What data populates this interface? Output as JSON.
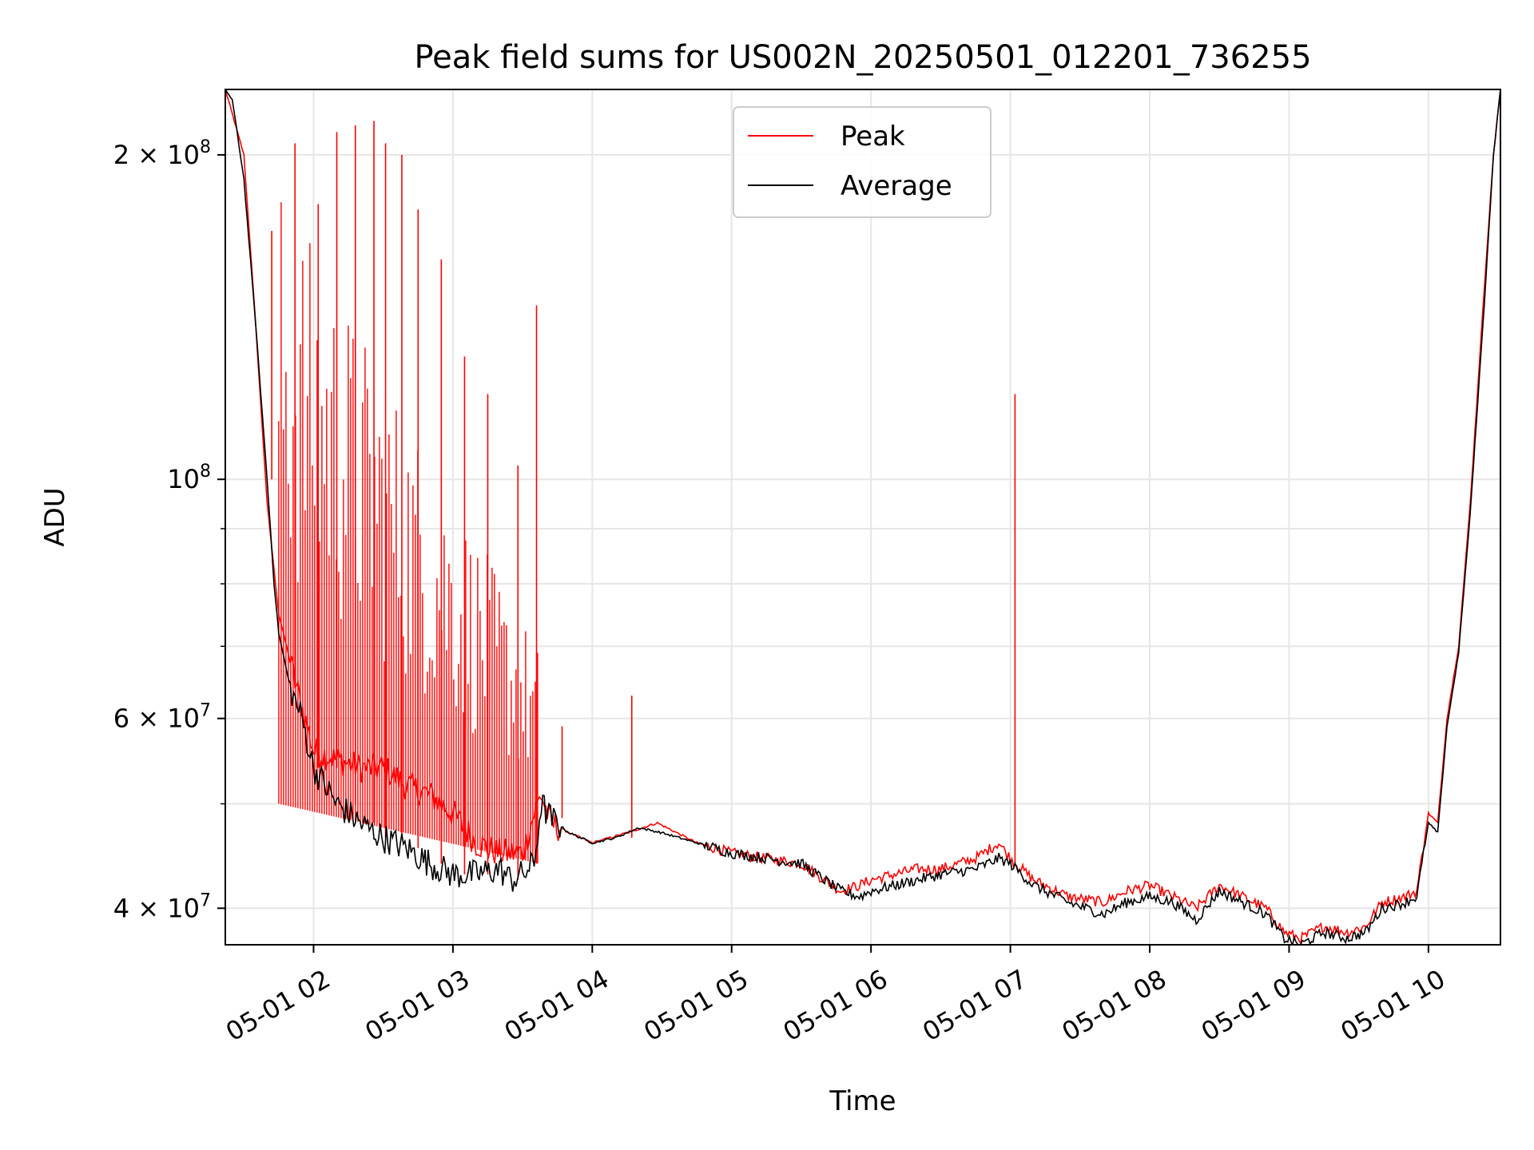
{
  "chart_data": {
    "type": "line",
    "title": "Peak field sums for US002N_20250501_012201_736255",
    "xlabel": "Time",
    "ylabel": "ADU",
    "yscale": "log",
    "ylim": [
      37000000,
      230000000
    ],
    "xlim": [
      "2025-05-01 01:22",
      "2025-05-01 10:31"
    ],
    "grid": true,
    "legend_position": "top-center",
    "x_tick_labels": [
      "05-01 02",
      "05-01 03",
      "05-01 04",
      "05-01 05",
      "05-01 06",
      "05-01 07",
      "05-01 08",
      "05-01 09",
      "05-01 10"
    ],
    "x_tick_times": [
      "2025-05-01 02:00",
      "2025-05-01 03:00",
      "2025-05-01 04:00",
      "2025-05-01 05:00",
      "2025-05-01 06:00",
      "2025-05-01 07:00",
      "2025-05-01 08:00",
      "2025-05-01 09:00",
      "2025-05-01 10:00"
    ],
    "y_major_ticks": [
      {
        "value": 40000000,
        "mantissa": "4",
        "exponent": "7"
      },
      {
        "value": 60000000,
        "mantissa": "6",
        "exponent": "7"
      },
      {
        "value": 100000000,
        "mantissa": "",
        "exponent": "8"
      },
      {
        "value": 200000000,
        "mantissa": "2",
        "exponent": "8"
      }
    ],
    "y_minor_ticks": [
      50000000,
      70000000,
      80000000,
      90000000,
      300000000
    ],
    "series": [
      {
        "name": "Peak",
        "color": "#ff0000",
        "x": [
          "2025-05-01 01:22",
          "2025-05-01 01:30",
          "2025-05-01 01:35",
          "2025-05-01 01:40",
          "2025-05-01 01:45",
          "2025-05-01 01:52",
          "2025-05-01 02:00",
          "2025-05-01 02:10",
          "2025-05-01 02:20",
          "2025-05-01 02:30",
          "2025-05-01 02:40",
          "2025-05-01 02:50",
          "2025-05-01 03:00",
          "2025-05-01 03:10",
          "2025-05-01 03:20",
          "2025-05-01 03:30",
          "2025-05-01 03:35",
          "2025-05-01 03:38",
          "2025-05-01 03:42",
          "2025-05-01 03:50",
          "2025-05-01 04:00",
          "2025-05-01 04:15",
          "2025-05-01 04:28",
          "2025-05-01 04:45",
          "2025-05-01 05:00",
          "2025-05-01 05:15",
          "2025-05-01 05:30",
          "2025-05-01 05:40",
          "2025-05-01 05:47",
          "2025-05-01 05:55",
          "2025-05-01 06:00",
          "2025-05-01 06:10",
          "2025-05-01 06:20",
          "2025-05-01 06:30",
          "2025-05-01 06:45",
          "2025-05-01 06:55",
          "2025-05-01 07:00",
          "2025-05-01 07:10",
          "2025-05-01 07:25",
          "2025-05-01 07:40",
          "2025-05-01 07:50",
          "2025-05-01 08:00",
          "2025-05-01 08:10",
          "2025-05-01 08:20",
          "2025-05-01 08:30",
          "2025-05-01 08:40",
          "2025-05-01 08:50",
          "2025-05-01 08:58",
          "2025-05-01 09:05",
          "2025-05-01 09:15",
          "2025-05-01 09:25",
          "2025-05-01 09:33",
          "2025-05-01 09:40",
          "2025-05-01 09:50",
          "2025-05-01 09:55",
          "2025-05-01 10:00",
          "2025-05-01 10:04",
          "2025-05-01 10:08",
          "2025-05-01 10:13",
          "2025-05-01 10:18",
          "2025-05-01 10:24",
          "2025-05-01 10:28",
          "2025-05-01 10:31"
        ],
        "values": [
          230000000,
          200000000,
          140000000,
          95000000,
          75000000,
          65000000,
          56000000,
          55000000,
          54000000,
          54000000,
          52000000,
          51000000,
          49000000,
          46000000,
          45000000,
          45000000,
          49000000,
          51000000,
          48000000,
          47000000,
          46000000,
          47000000,
          48000000,
          46000000,
          45000000,
          44500000,
          44000000,
          42500000,
          41500000,
          42000000,
          42500000,
          43000000,
          43500000,
          43500000,
          44500000,
          46000000,
          44500000,
          42500000,
          41000000,
          40500000,
          41500000,
          42000000,
          41000000,
          40000000,
          42000000,
          41000000,
          40000000,
          38000000,
          37500000,
          38500000,
          38000000,
          38500000,
          40500000,
          41000000,
          41500000,
          49000000,
          48000000,
          60000000,
          70000000,
          95000000,
          150000000,
          200000000,
          230000000
        ],
        "spikes": [
          {
            "x": "2025-05-01 01:42",
            "value": 170000000
          },
          {
            "x": "2025-05-01 01:52",
            "value": 205000000
          },
          {
            "x": "2025-05-01 02:02",
            "value": 180000000
          },
          {
            "x": "2025-05-01 02:10",
            "value": 210000000
          },
          {
            "x": "2025-05-01 02:18",
            "value": 213000000
          },
          {
            "x": "2025-05-01 02:26",
            "value": 215000000
          },
          {
            "x": "2025-05-01 02:31",
            "value": 205000000
          },
          {
            "x": "2025-05-01 02:38",
            "value": 200000000
          },
          {
            "x": "2025-05-01 02:45",
            "value": 178000000
          },
          {
            "x": "2025-05-01 02:55",
            "value": 160000000
          },
          {
            "x": "2025-05-01 03:05",
            "value": 130000000
          },
          {
            "x": "2025-05-01 03:15",
            "value": 120000000
          },
          {
            "x": "2025-05-01 03:28",
            "value": 103000000
          },
          {
            "x": "2025-05-01 03:36",
            "value": 145000000
          },
          {
            "x": "2025-05-01 03:47",
            "value": 59000000
          },
          {
            "x": "2025-05-01 04:17",
            "value": 63000000
          },
          {
            "x": "2025-05-01 07:02",
            "value": 120000000
          }
        ]
      },
      {
        "name": "Average",
        "color": "#000000",
        "x": [
          "2025-05-01 01:22",
          "2025-05-01 01:25",
          "2025-05-01 01:30",
          "2025-05-01 01:35",
          "2025-05-01 01:40",
          "2025-05-01 01:43",
          "2025-05-01 01:45",
          "2025-05-01 01:50",
          "2025-05-01 01:55",
          "2025-05-01 02:00",
          "2025-05-01 02:10",
          "2025-05-01 02:20",
          "2025-05-01 02:30",
          "2025-05-01 02:40",
          "2025-05-01 02:50",
          "2025-05-01 03:00",
          "2025-05-01 03:10",
          "2025-05-01 03:20",
          "2025-05-01 03:25",
          "2025-05-01 03:30",
          "2025-05-01 03:35",
          "2025-05-01 03:38",
          "2025-05-01 03:42",
          "2025-05-01 03:50",
          "2025-05-01 04:00",
          "2025-05-01 04:10",
          "2025-05-01 04:20",
          "2025-05-01 04:30",
          "2025-05-01 04:45",
          "2025-05-01 05:00",
          "2025-05-01 05:15",
          "2025-05-01 05:30",
          "2025-05-01 05:40",
          "2025-05-01 05:47",
          "2025-05-01 05:55",
          "2025-05-01 06:00",
          "2025-05-01 06:10",
          "2025-05-01 06:20",
          "2025-05-01 06:30",
          "2025-05-01 06:45",
          "2025-05-01 06:55",
          "2025-05-01 07:00",
          "2025-05-01 07:10",
          "2025-05-01 07:25",
          "2025-05-01 07:40",
          "2025-05-01 07:50",
          "2025-05-01 08:00",
          "2025-05-01 08:10",
          "2025-05-01 08:20",
          "2025-05-01 08:30",
          "2025-05-01 08:40",
          "2025-05-01 08:50",
          "2025-05-01 08:58",
          "2025-05-01 09:05",
          "2025-05-01 09:15",
          "2025-05-01 09:25",
          "2025-05-01 09:33",
          "2025-05-01 09:40",
          "2025-05-01 09:50",
          "2025-05-01 09:55",
          "2025-05-01 10:00",
          "2025-05-01 10:04",
          "2025-05-01 10:08",
          "2025-05-01 10:13",
          "2025-05-01 10:18",
          "2025-05-01 10:24",
          "2025-05-01 10:28",
          "2025-05-01 10:31"
        ],
        "values": [
          230000000,
          225000000,
          190000000,
          140000000,
          100000000,
          80000000,
          72000000,
          64000000,
          60000000,
          54000000,
          50000000,
          48000000,
          46500000,
          45500000,
          44000000,
          43000000,
          43000000,
          43500000,
          42500000,
          43000000,
          44000000,
          50000000,
          48500000,
          47000000,
          46000000,
          46500000,
          47500000,
          47000000,
          46000000,
          45000000,
          44500000,
          44000000,
          42500000,
          41500000,
          41000000,
          41500000,
          42000000,
          42500000,
          43000000,
          43500000,
          44500000,
          44000000,
          42000000,
          40500000,
          39500000,
          40500000,
          41000000,
          40500000,
          39000000,
          41500000,
          40500000,
          39500000,
          37500000,
          37000000,
          38000000,
          37500000,
          38000000,
          40000000,
          40500000,
          41000000,
          48000000,
          47000000,
          59000000,
          69000000,
          93000000,
          145000000,
          200000000,
          230000000
        ]
      }
    ]
  }
}
